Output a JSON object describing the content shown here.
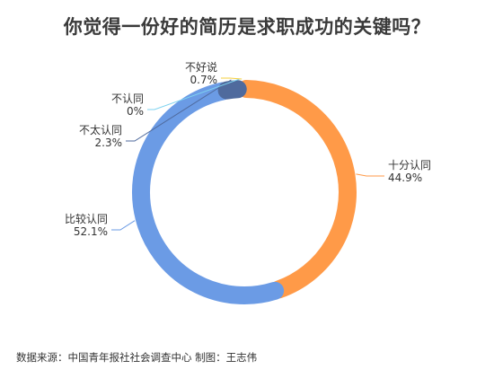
{
  "title": "你觉得一份好的简历是求职成功的关键吗？",
  "source": "数据来源：中国青年报社社会调查中心 制图：王志伟",
  "chart_data": {
    "type": "pie",
    "style": "donut",
    "categories": [
      "十分认同",
      "比较认同",
      "不太认同",
      "不认同",
      "不好说"
    ],
    "values": [
      44.9,
      52.1,
      2.3,
      0,
      0.7
    ],
    "labels": [
      "44.9%",
      "52.1%",
      "2.3%",
      "0%",
      "0.7%"
    ],
    "colors": [
      "#FF9A48",
      "#6B9BE5",
      "#4F6A9D",
      "#7FD3F0",
      "#F5CF3C"
    ]
  }
}
